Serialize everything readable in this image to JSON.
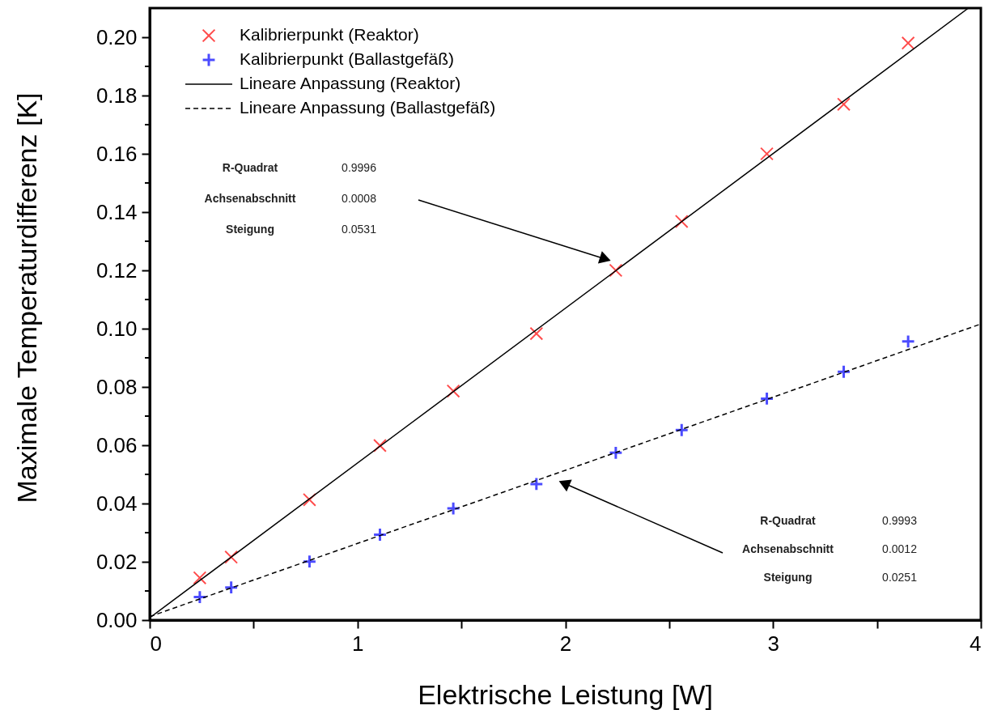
{
  "chart_data": {
    "type": "scatter",
    "xlabel": "Elektrische Leistung [W]",
    "ylabel": "Maximale Temperaturdifferenz [K]",
    "xlim": [
      0,
      4
    ],
    "ylim": [
      0,
      0.21
    ],
    "xticks": [
      0,
      {
        "value": 0.5,
        "label": null
      },
      1,
      {
        "value": 1.5,
        "label": null
      },
      2,
      {
        "value": 2.5,
        "label": null
      },
      3,
      {
        "value": 3.5,
        "label": null
      },
      4
    ],
    "yticks": [
      "0.00",
      {
        "value": 0.01,
        "label": null
      },
      {
        "value": 0.02,
        "label": "0.02"
      },
      {
        "value": 0.03,
        "label": null
      },
      {
        "value": 0.04,
        "label": "0.04"
      },
      {
        "value": 0.05,
        "label": null
      },
      {
        "value": 0.06,
        "label": "0.06"
      },
      {
        "value": 0.07,
        "label": null
      },
      {
        "value": 0.08,
        "label": "0.08"
      },
      {
        "value": 0.09,
        "label": null
      },
      {
        "value": 0.1,
        "label": "0.10"
      },
      {
        "value": 0.11,
        "label": null
      },
      {
        "value": 0.12,
        "label": "0.12"
      },
      {
        "value": 0.13,
        "label": null
      },
      {
        "value": 0.14,
        "label": "0.14"
      },
      {
        "value": 0.15,
        "label": null
      },
      {
        "value": 0.16,
        "label": "0.16"
      },
      {
        "value": 0.17,
        "label": null
      },
      {
        "value": 0.18,
        "label": "0.18"
      },
      {
        "value": 0.19,
        "label": null
      },
      {
        "value": 0.2,
        "label": "0.20"
      }
    ],
    "grid": false,
    "legend": "top left",
    "series": [
      {
        "name": "Kalibrierpunkt (Reaktor)",
        "type": "scatter",
        "marker": "x",
        "color": "#ff0000",
        "x": [
          0.241,
          0.392,
          0.769,
          1.108,
          1.461,
          1.861,
          2.243,
          2.56,
          2.97,
          3.34,
          3.65
        ],
        "values": [
          0.0145,
          0.0216,
          0.0413,
          0.0599,
          0.0786,
          0.0983,
          0.12,
          0.1368,
          0.16,
          0.177,
          0.198
        ]
      },
      {
        "name": "Kalibrierpunkt (Ballastgefäß)",
        "type": "scatter",
        "marker": "cross",
        "color": "#0000ff",
        "x": [
          0.241,
          0.392,
          0.769,
          1.108,
          1.461,
          1.861,
          2.243,
          2.56,
          2.97,
          3.34,
          3.65
        ],
        "values": [
          0.0079,
          0.0112,
          0.0201,
          0.0293,
          0.0383,
          0.0467,
          0.0574,
          0.0652,
          0.076,
          0.0852,
          0.0956
        ]
      },
      {
        "name": "Lineare Anpassung (Reaktor)",
        "type": "line",
        "line_style": "solid",
        "color": "#000000",
        "x": [
          0,
          3.94
        ],
        "values": [
          0.0008,
          0.21
        ]
      },
      {
        "name": "Lineare Anpassung (Ballastgefäß)",
        "type": "line",
        "line_style": "dashed",
        "color": "#000000",
        "x": [
          0,
          4
        ],
        "values": [
          0.0012,
          0.1016
        ]
      }
    ],
    "annotations": [
      "R-Quadrat",
      "0.9996",
      "Achsenabschnitt",
      "0.0008",
      "Steigung",
      "0.0531",
      "R-Quadrat",
      "0.9993",
      "Achsenabschnitt",
      "0.0012",
      "Steigung",
      "0.0251"
    ]
  }
}
